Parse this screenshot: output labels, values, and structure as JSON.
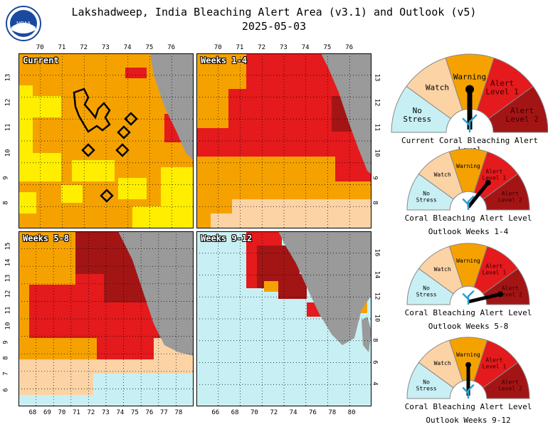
{
  "title_line1": "Lakshadweep, India Bleaching Alert Area (v3.1) and Outlook (v5)",
  "title_line2": "2025-05-03",
  "logo_text": "NOAA",
  "colors": {
    "no_stress": "#c8f0f4",
    "watch": "#fcd3a5",
    "watch_current": "#ffee00",
    "warning": "#f5a200",
    "alert1": "#e41a1c",
    "alert2": "#a31515",
    "land": "#9a9a9a",
    "gauge_border": "#888888"
  },
  "panels": {
    "current": {
      "label": "Current",
      "top_ticks": [
        "70",
        "71",
        "72",
        "73",
        "74",
        "75",
        "76"
      ],
      "left_ticks": [
        "13",
        "12",
        "11",
        "10",
        "9",
        "8"
      ]
    },
    "w14": {
      "label": "Weeks 1-4",
      "top_ticks": [
        "70",
        "71",
        "72",
        "73",
        "74",
        "75",
        "76"
      ],
      "right_ticks": [
        "13",
        "12",
        "11",
        "10",
        "9",
        "8"
      ]
    },
    "w58": {
      "label": "Weeks 5-8",
      "bottom_ticks": [
        "68",
        "69",
        "70",
        "71",
        "72",
        "73",
        "74",
        "75",
        "76",
        "77",
        "78"
      ],
      "left_ticks": [
        "15",
        "14",
        "13",
        "12",
        "11",
        "10",
        "9",
        "8",
        "7",
        "6"
      ]
    },
    "w912": {
      "label": "Weeks 9-12",
      "bottom_ticks": [
        "66",
        "68",
        "70",
        "72",
        "74",
        "76",
        "78",
        "80"
      ],
      "right_ticks": [
        "16",
        "14",
        "12",
        "10",
        "8",
        "6",
        "4"
      ]
    }
  },
  "gauges": [
    {
      "label": "Current Coral Bleaching Alert Level",
      "label2": "",
      "segments": [
        "No Stress",
        "Watch",
        "Warning",
        "Alert Level 1",
        "Alert Level 2"
      ],
      "level": "Warning"
    },
    {
      "label": "Coral Bleaching Alert Level",
      "label2": "Outlook Weeks 1-4",
      "segments": [
        "No Stress",
        "Watch",
        "Warning",
        "Alert Level 1",
        "Alert Level 2"
      ],
      "level": "Alert Level 1"
    },
    {
      "label": "Coral Bleaching Alert Level",
      "label2": "Outlook Weeks 5-8",
      "segments": [
        "No Stress",
        "Watch",
        "Warning",
        "Alert Level 1",
        "Alert Level 2"
      ],
      "level": "Alert Level 2"
    },
    {
      "label": "Coral Bleaching Alert Level",
      "label2": "Outlook Weeks 9-12",
      "segments": [
        "No Stress",
        "Watch",
        "Warning",
        "Alert Level 1",
        "Alert Level 2"
      ],
      "level": "Warning"
    }
  ]
}
